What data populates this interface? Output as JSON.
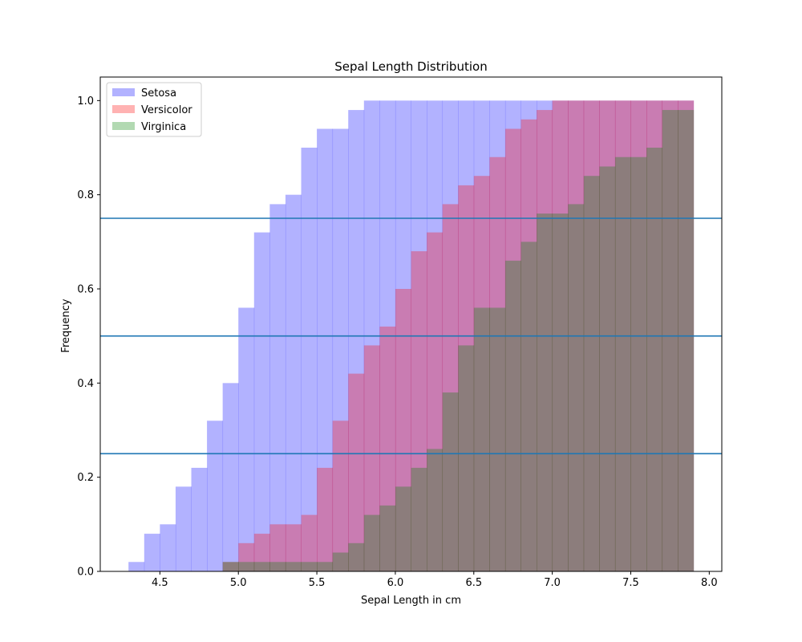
{
  "chart_data": {
    "type": "area",
    "title": "Sepal Length Distribution",
    "xlabel": "Sepal Length in cm",
    "ylabel": "Frequency",
    "xlim": [
      4.12,
      8.08
    ],
    "ylim": [
      0,
      1.05
    ],
    "xticks": [
      "4.5",
      "5.0",
      "5.5",
      "6.0",
      "6.5",
      "7.0",
      "7.5",
      "8.0"
    ],
    "xtick_values": [
      4.5,
      5.0,
      5.5,
      6.0,
      6.5,
      7.0,
      7.5,
      8.0
    ],
    "yticks": [
      "0.0",
      "0.2",
      "0.4",
      "0.6",
      "0.8",
      "1.0"
    ],
    "ytick_values": [
      0.0,
      0.2,
      0.4,
      0.6,
      0.8,
      1.0
    ],
    "bin_edges": [
      4.3,
      4.4,
      4.5,
      4.6,
      4.7,
      4.8,
      4.9,
      5.0,
      5.1,
      5.2,
      5.3,
      5.4,
      5.5,
      5.6,
      5.7,
      5.8,
      5.9,
      6.0,
      6.1,
      6.2,
      6.3,
      6.4,
      6.5,
      6.6,
      6.7,
      6.8,
      6.9,
      7.0,
      7.1,
      7.2,
      7.3,
      7.4,
      7.5,
      7.6,
      7.7,
      7.8,
      7.9
    ],
    "series": [
      {
        "name": "Setosa",
        "color": "#0000ff",
        "opacity": 0.3,
        "values": [
          0.02,
          0.08,
          0.1,
          0.18,
          0.22,
          0.32,
          0.4,
          0.56,
          0.72,
          0.78,
          0.8,
          0.9,
          0.94,
          0.94,
          0.98,
          1.0,
          1.0,
          1.0,
          1.0,
          1.0,
          1.0,
          1.0,
          1.0,
          1.0,
          1.0,
          1.0,
          1.0,
          1.0,
          1.0,
          1.0,
          1.0,
          1.0,
          1.0,
          1.0,
          1.0,
          1.0
        ]
      },
      {
        "name": "Versicolor",
        "color": "#ff0000",
        "opacity": 0.3,
        "values": [
          0,
          0,
          0,
          0,
          0,
          0,
          0.02,
          0.06,
          0.08,
          0.1,
          0.1,
          0.12,
          0.22,
          0.32,
          0.42,
          0.48,
          0.52,
          0.6,
          0.68,
          0.72,
          0.78,
          0.82,
          0.84,
          0.88,
          0.94,
          0.96,
          0.98,
          1.0,
          1.0,
          1.0,
          1.0,
          1.0,
          1.0,
          1.0,
          1.0,
          1.0
        ]
      },
      {
        "name": "Virginica",
        "color": "#008000",
        "opacity": 0.3,
        "values": [
          0,
          0,
          0,
          0,
          0,
          0,
          0.02,
          0.02,
          0.02,
          0.02,
          0.02,
          0.02,
          0.02,
          0.04,
          0.06,
          0.12,
          0.14,
          0.18,
          0.22,
          0.26,
          0.38,
          0.48,
          0.56,
          0.56,
          0.66,
          0.7,
          0.76,
          0.76,
          0.78,
          0.84,
          0.86,
          0.88,
          0.88,
          0.9,
          0.98,
          0.98
        ]
      }
    ],
    "hlines": [
      0.25,
      0.5,
      0.75
    ],
    "hline_color": "#1f77b4",
    "legend": "top-left",
    "grid": false
  }
}
